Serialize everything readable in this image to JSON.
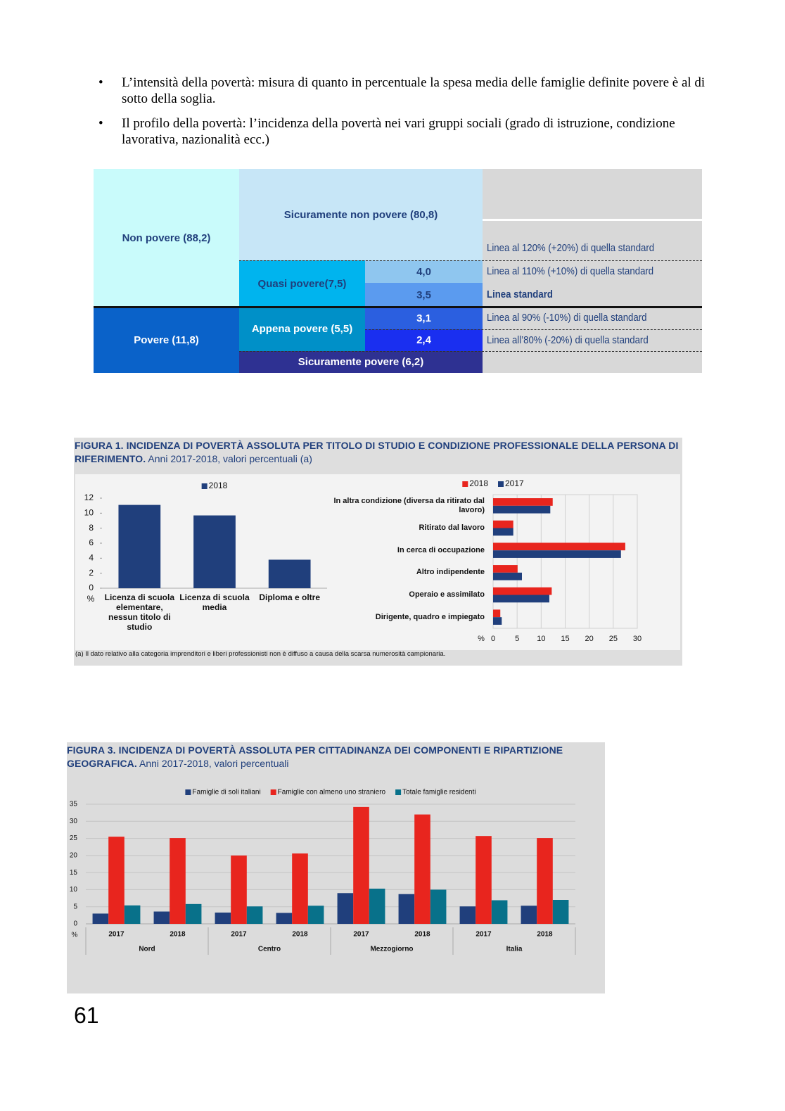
{
  "bullets": [
    "L’intensità della povertà: misura di quanto in percentuale la spesa media delle famiglie definite povere è al di sotto della soglia.",
    "Il profilo della povertà: l’incidenza della povertà nei vari gruppi sociali (grado di istruzione, condizione lavorativa, nazionalità ecc.)"
  ],
  "diagram": {
    "cells": [
      "Non povere (88,2)",
      "Sicuramente non povere (80,8)",
      "Quasi povere(7,5)",
      "4,0",
      "3,5",
      "Appena povere (5,5)",
      "3,1",
      "2,4",
      "Povere (11,8)",
      "Sicuramente povere (6,2)"
    ],
    "lines": [
      "Linea al 120% (+20%) di quella standard",
      "Linea al 110% (+10%) di quella standard",
      "Linea standard",
      "Linea al 90% (-10%) di quella  standard",
      "Linea all’80% (-20%) di quella standard"
    ]
  },
  "figure1": {
    "title": "FIGURA 1. INCIDENZA DI POVERTÀ ASSOLUTA PER TITOLO DI STUDIO E CONDIZIONE PROFESSIONALE DELLA PERSONA DI RIFERIMENTO.",
    "subtitle": "Anni 2017-2018, valori percentuali (a)",
    "note": "(a)   Il dato relativo alla categoria imprenditori e liberi professionisti non è diffuso a causa della scarsa numerosità campionaria."
  },
  "figure3": {
    "title": "FIGURA 3. INCIDENZA DI POVERTÀ ASSOLUTA PER CITTADINANZA DEI COMPONENTI E RIPARTIZIONE GEOGRAFICA.",
    "subtitle": "Anni 2017-2018, valori percentuali"
  },
  "chart_data": [
    {
      "type": "bar",
      "orientation": "vertical",
      "categories": [
        "Licenza di scuola elementare, nessun titolo di studio",
        "Licenza di scuola media",
        "Diploma e oltre"
      ],
      "series": [
        {
          "name": "2018",
          "color": "#203f7c",
          "values": [
            11.1,
            9.7,
            3.8
          ]
        }
      ],
      "ylim": [
        0,
        12
      ],
      "yticks": [
        0,
        2,
        4,
        6,
        8,
        10,
        12
      ],
      "y_unit": "%",
      "grid": false,
      "legend": "top"
    },
    {
      "type": "bar",
      "orientation": "horizontal",
      "categories": [
        "In altra condizione (diversa da ritirato dal lavoro)",
        "Ritirato dal lavoro",
        "In cerca di occupazione",
        "Altro indipendente",
        "Operaio e assimilato",
        "Dirigente, quadro e impiegato"
      ],
      "series": [
        {
          "name": "2018",
          "color": "#e8251e",
          "values": [
            12.4,
            4.2,
            27.5,
            5.1,
            12.2,
            1.5
          ]
        },
        {
          "name": "2017",
          "color": "#203f7c",
          "values": [
            11.9,
            4.2,
            26.6,
            6.0,
            11.7,
            1.8
          ]
        }
      ],
      "xlim": [
        0,
        30
      ],
      "xticks": [
        0,
        5,
        10,
        15,
        20,
        25,
        30
      ],
      "x_unit": "%",
      "grid": true,
      "legend": "top"
    },
    {
      "type": "bar",
      "orientation": "vertical",
      "categories": [
        "2017",
        "2018",
        "2017",
        "2018",
        "2017",
        "2018",
        "2017",
        "2018"
      ],
      "groups": [
        "Nord",
        "Centro",
        "Mezzogiorno",
        "Italia"
      ],
      "series": [
        {
          "name": "Famiglie di soli italiani",
          "color": "#203f7c",
          "values": [
            3.0,
            3.6,
            3.3,
            3.2,
            9.0,
            8.7,
            5.1,
            5.3
          ]
        },
        {
          "name": "Famiglie con almeno uno straniero",
          "color": "#e8251e",
          "values": [
            25.5,
            25.1,
            20.0,
            20.6,
            34.2,
            32.0,
            25.7,
            25.1
          ]
        },
        {
          "name": "Totale famiglie residenti",
          "color": "#08718a",
          "values": [
            5.4,
            5.8,
            5.1,
            5.3,
            10.3,
            10.0,
            6.9,
            7.0
          ]
        }
      ],
      "ylim": [
        0,
        35
      ],
      "yticks": [
        0,
        5,
        10,
        15,
        20,
        25,
        30,
        35
      ],
      "y_unit": "%",
      "grid": true,
      "legend": "top"
    }
  ],
  "page_number": "61"
}
